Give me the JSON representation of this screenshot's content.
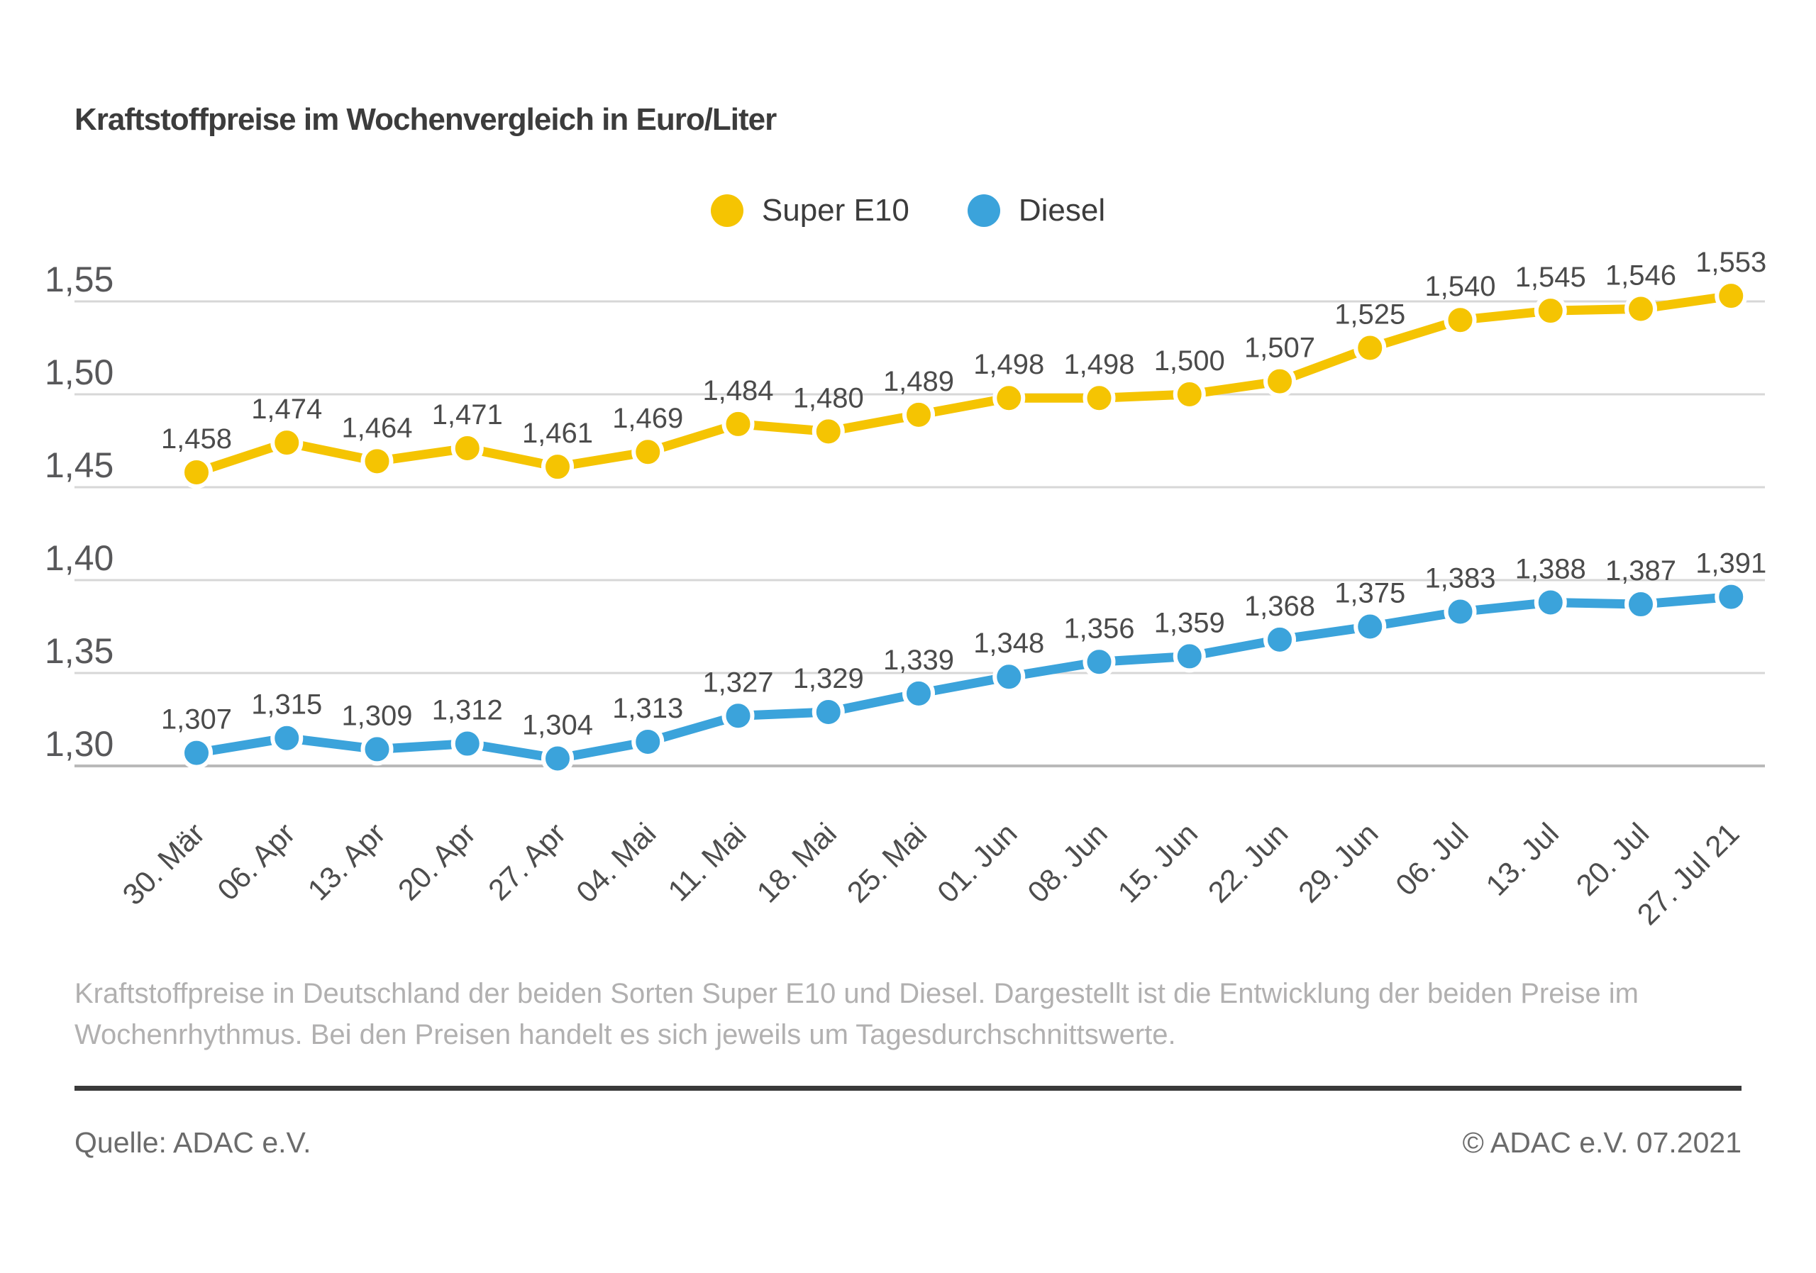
{
  "page": {
    "title": "Kraftstoffpreise im Wochenvergleich in Euro/Liter",
    "description_lines": [
      "Kraftstoffpreise in Deutschland der beiden Sorten Super E10 und Diesel. Dargestellt ist die Entwicklung der beiden Preise im",
      "Wochenrhythmus. Bei den Preisen handelt es sich jeweils um Tagesdurchschnittswerte."
    ],
    "source_left": "Quelle: ADAC e.V.",
    "source_right": "© ADAC e.V. 07.2021"
  },
  "chart_data": {
    "type": "line",
    "title": "Kraftstoffpreise im Wochenvergleich in Euro/Liter",
    "categories": [
      "30. Mär",
      "06. Apr",
      "13. Apr",
      "20. Apr",
      "27. Apr",
      "04. Mai",
      "11. Mai",
      "18. Mai",
      "25. Mai",
      "01. Jun",
      "08. Jun",
      "15. Jun",
      "22. Jun",
      "29. Jun",
      "06. Jul",
      "13. Jul",
      "20. Jul",
      "27. Jul 21"
    ],
    "series": [
      {
        "name": "Super E10",
        "color": "#F5C402",
        "values": [
          1.458,
          1.474,
          1.464,
          1.471,
          1.461,
          1.469,
          1.484,
          1.48,
          1.489,
          1.498,
          1.498,
          1.5,
          1.507,
          1.525,
          1.54,
          1.545,
          1.546,
          1.553
        ]
      },
      {
        "name": "Diesel",
        "color": "#3BA3DB",
        "values": [
          1.307,
          1.315,
          1.309,
          1.312,
          1.304,
          1.313,
          1.327,
          1.329,
          1.339,
          1.348,
          1.356,
          1.359,
          1.368,
          1.375,
          1.383,
          1.388,
          1.387,
          1.391
        ]
      }
    ],
    "ylabel": "Euro/Liter",
    "ylim": [
      1.275,
      1.57
    ],
    "yticks": [
      1.3,
      1.35,
      1.4,
      1.45,
      1.5,
      1.55
    ],
    "decimal_separator": ",",
    "grid": true,
    "legend_position": "top-center",
    "data_labels": true
  }
}
